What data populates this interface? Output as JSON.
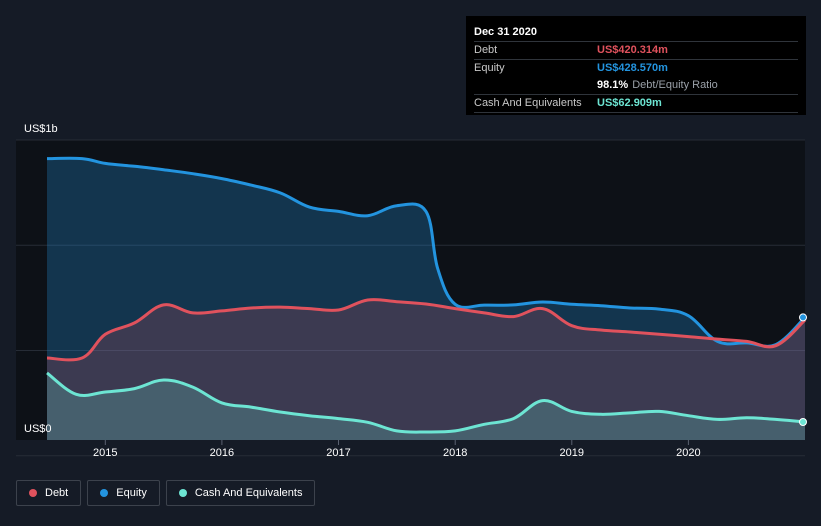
{
  "chart_data": {
    "type": "area",
    "title": "",
    "ylabel_top": "US$1b",
    "ylabel_bottom": "US$0",
    "ylim": [
      0,
      1050
    ],
    "x_ticks": [
      "2015",
      "2016",
      "2017",
      "2018",
      "2019",
      "2020"
    ],
    "series": [
      {
        "name": "Equity",
        "color": "#2394df",
        "x": [
          2014.5,
          2014.8,
          2015.0,
          2015.25,
          2015.5,
          2015.75,
          2016.0,
          2016.25,
          2016.5,
          2016.75,
          2017.0,
          2017.25,
          2017.5,
          2017.75,
          2017.85,
          2018.0,
          2018.25,
          2018.5,
          2018.75,
          2019.0,
          2019.25,
          2019.5,
          2019.75,
          2020.0,
          2020.25,
          2020.5,
          2020.75,
          2021.0
        ],
        "values": [
          985,
          985,
          968,
          958,
          946,
          932,
          915,
          892,
          865,
          815,
          800,
          785,
          820,
          800,
          600,
          475,
          472,
          473,
          483,
          475,
          470,
          462,
          458,
          435,
          345,
          340,
          334,
          429
        ]
      },
      {
        "name": "Debt",
        "color": "#e0525d",
        "x": [
          2014.5,
          2014.8,
          2015.0,
          2015.25,
          2015.5,
          2015.75,
          2016.0,
          2016.25,
          2016.5,
          2016.75,
          2017.0,
          2017.25,
          2017.5,
          2017.75,
          2018.0,
          2018.25,
          2018.5,
          2018.75,
          2019.0,
          2019.25,
          2019.5,
          2019.75,
          2020.0,
          2020.25,
          2020.5,
          2020.75,
          2021.0
        ],
        "values": [
          287,
          287,
          370,
          410,
          473,
          445,
          452,
          462,
          465,
          460,
          455,
          490,
          484,
          476,
          460,
          445,
          432,
          460,
          400,
          385,
          378,
          370,
          362,
          353,
          345,
          330,
          420
        ]
      },
      {
        "name": "Cash And Equivalents",
        "color": "#6de5d3",
        "x": [
          2014.5,
          2014.75,
          2015.0,
          2015.25,
          2015.5,
          2015.75,
          2016.0,
          2016.25,
          2016.5,
          2016.75,
          2017.0,
          2017.25,
          2017.5,
          2017.75,
          2018.0,
          2018.25,
          2018.5,
          2018.75,
          2019.0,
          2019.25,
          2019.5,
          2019.75,
          2020.0,
          2020.25,
          2020.5,
          2020.75,
          2021.0
        ],
        "values": [
          235,
          160,
          168,
          180,
          210,
          185,
          130,
          115,
          98,
          85,
          75,
          62,
          32,
          28,
          32,
          55,
          75,
          138,
          100,
          90,
          95,
          100,
          85,
          72,
          78,
          72,
          63
        ]
      }
    ],
    "legend": [
      "Debt",
      "Equity",
      "Cash And Equivalents"
    ],
    "legend_position": "bottom-left"
  },
  "tooltip": {
    "date": "Dec 31 2020",
    "debt_label": "Debt",
    "debt_value": "US$420.314m",
    "equity_label": "Equity",
    "equity_value": "US$428.570m",
    "ratio_value": "98.1%",
    "ratio_label": "Debt/Equity Ratio",
    "cash_label": "Cash And Equivalents",
    "cash_value": "US$62.909m"
  },
  "legend_labels": {
    "debt": "Debt",
    "equity": "Equity",
    "cash": "Cash And Equivalents"
  },
  "colors": {
    "debt": "#e0525d",
    "equity": "#2394df",
    "cash": "#6de5d3",
    "background": "#151b26"
  }
}
